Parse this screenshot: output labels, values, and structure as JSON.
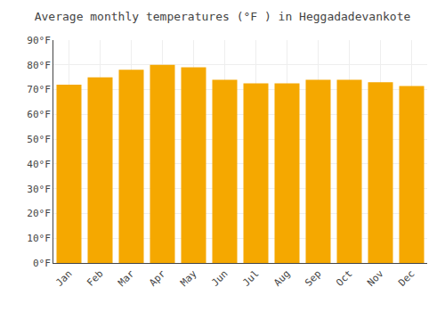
{
  "chart_data": {
    "type": "bar",
    "title": "Average monthly temperatures (°F ) in Heggadadevankote",
    "categories": [
      "Jan",
      "Feb",
      "Mar",
      "Apr",
      "May",
      "Jun",
      "Jul",
      "Aug",
      "Sep",
      "Oct",
      "Nov",
      "Dec"
    ],
    "values": [
      72,
      75,
      78,
      80,
      79,
      74,
      72.5,
      72.5,
      74,
      74,
      73,
      71.5
    ],
    "color": "#F5A800",
    "ylim": [
      0,
      90
    ],
    "yticks": [
      {
        "value": 0,
        "label": "0°F"
      },
      {
        "value": 10,
        "label": "10°F"
      },
      {
        "value": 20,
        "label": "20°F"
      },
      {
        "value": 30,
        "label": "30°F"
      },
      {
        "value": 40,
        "label": "40°F"
      },
      {
        "value": 50,
        "label": "50°F"
      },
      {
        "value": 60,
        "label": "60°F"
      },
      {
        "value": 70,
        "label": "70°F"
      },
      {
        "value": 80,
        "label": "80°F"
      },
      {
        "value": 90,
        "label": "90°F"
      }
    ],
    "grid": true
  }
}
